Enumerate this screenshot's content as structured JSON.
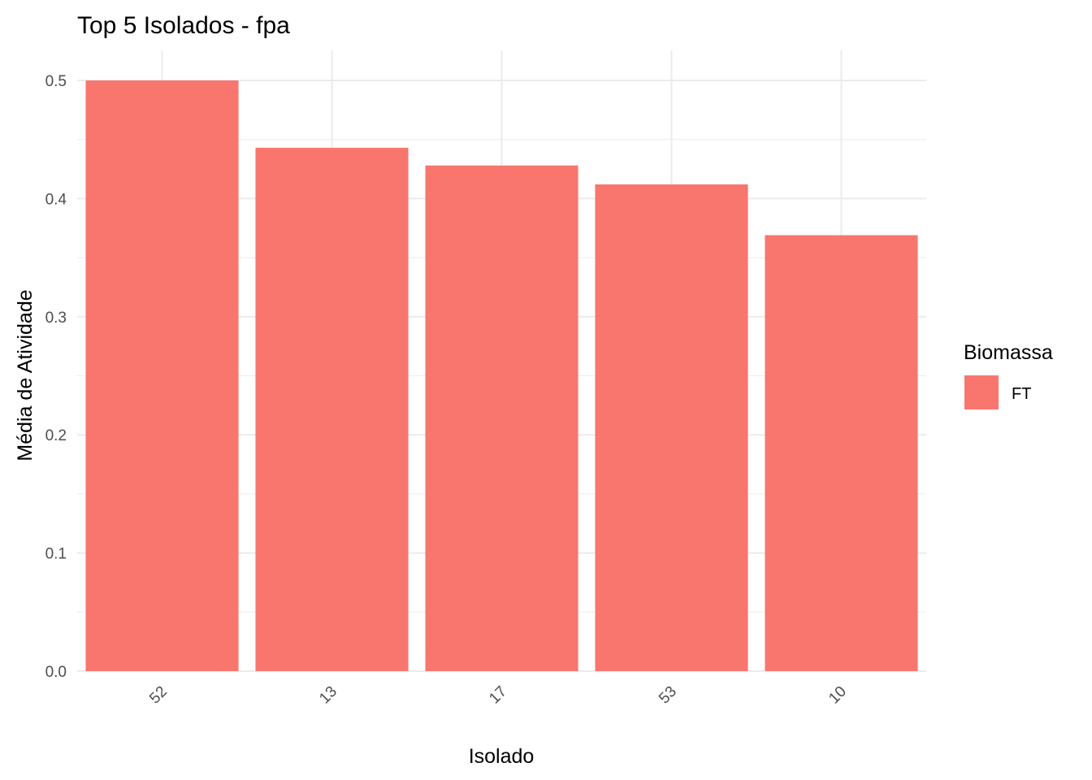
{
  "chart_data": {
    "type": "bar",
    "title": "Top 5 Isolados - fpa",
    "xlabel": "Isolado",
    "ylabel": "Média de Atividade",
    "categories": [
      "52",
      "13",
      "17",
      "53",
      "10"
    ],
    "series": [
      {
        "name": "FT",
        "values": [
          0.5,
          0.443,
          0.428,
          0.412,
          0.369
        ]
      }
    ],
    "ylim": [
      0,
      0.5
    ],
    "yticks": [
      "0.0",
      "0.1",
      "0.2",
      "0.3",
      "0.4",
      "0.5"
    ],
    "grid": true,
    "legend": {
      "title": "Biomassa",
      "position": "right",
      "items": [
        {
          "label": "FT",
          "color": "#F8766D"
        }
      ]
    },
    "colors": {
      "bar": "#F8766D",
      "grid": "#EBEBEB"
    }
  }
}
